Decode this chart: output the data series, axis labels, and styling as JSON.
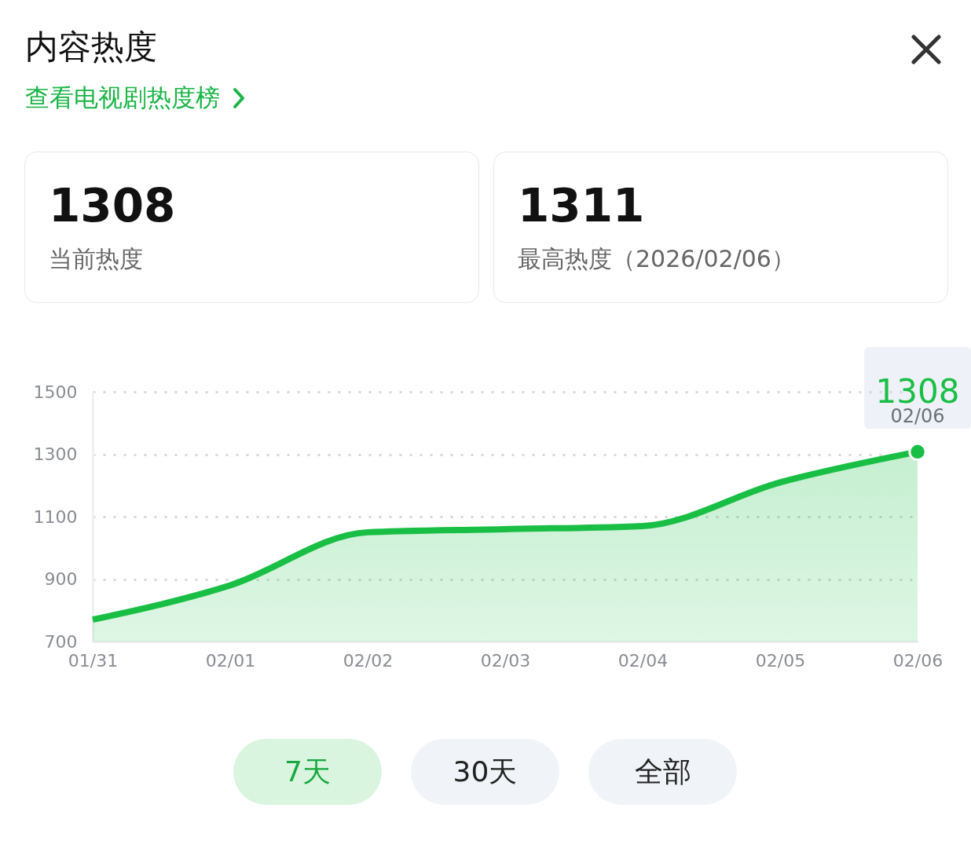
{
  "chart_data": {
    "type": "area",
    "title": "内容热度",
    "subtitle": "查看电视剧热度榜",
    "categories": [
      "01/31",
      "02/01",
      "02/02",
      "02/03",
      "02/04",
      "02/05",
      "02/06"
    ],
    "series": [
      {
        "color": "#19bf45",
        "values": [
          770,
          880,
          1050,
          1060,
          1070,
          1210,
          1308
        ]
      },
      {
        "type": "scatter",
        "color": "#19bf45",
        "x": [
          "02/06"
        ],
        "values": [
          1308
        ]
      }
    ],
    "ylim": [
      700,
      1500
    ],
    "yticks": [
      700,
      900,
      1100,
      1300,
      1500
    ],
    "grid": "y",
    "annotations": [
      {
        "text": "1308",
        "x": "02/06",
        "y": 1308
      },
      {
        "text": "02/06",
        "x": "02/06",
        "y": 1308
      },
      "1308",
      "当前热度",
      "1311",
      "最高热度（2026/02/06）",
      "7天",
      "30天",
      "全部"
    ]
  }
}
